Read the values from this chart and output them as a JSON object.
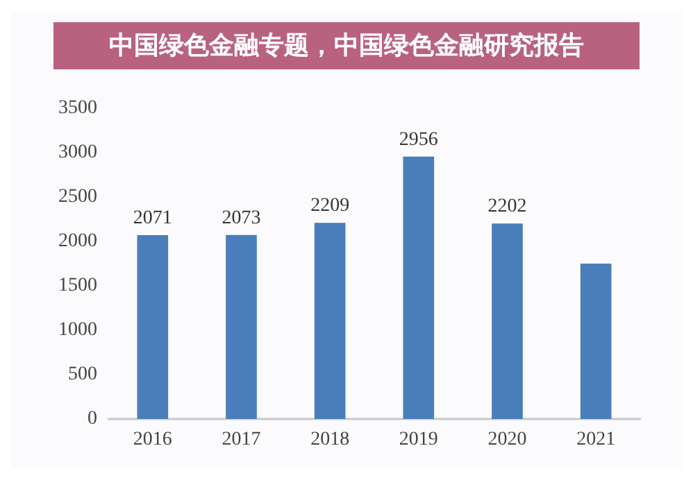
{
  "chart_data": {
    "type": "bar",
    "title": "中国绿色金融专题，中国绿色金融研究报告",
    "categories": [
      "2016",
      "2017",
      "2018",
      "2019",
      "2020",
      "2021"
    ],
    "values": [
      2071,
      2073,
      2209,
      2956,
      2202,
      1750
    ],
    "value_labels": [
      "2071",
      "2073",
      "2209",
      "2956",
      "2202",
      null
    ],
    "color": "#4a7ebb",
    "ylim": [
      0,
      3500
    ],
    "yticks": [
      0,
      500,
      1000,
      1500,
      2000,
      2500,
      3000,
      3500
    ],
    "grid": false
  }
}
